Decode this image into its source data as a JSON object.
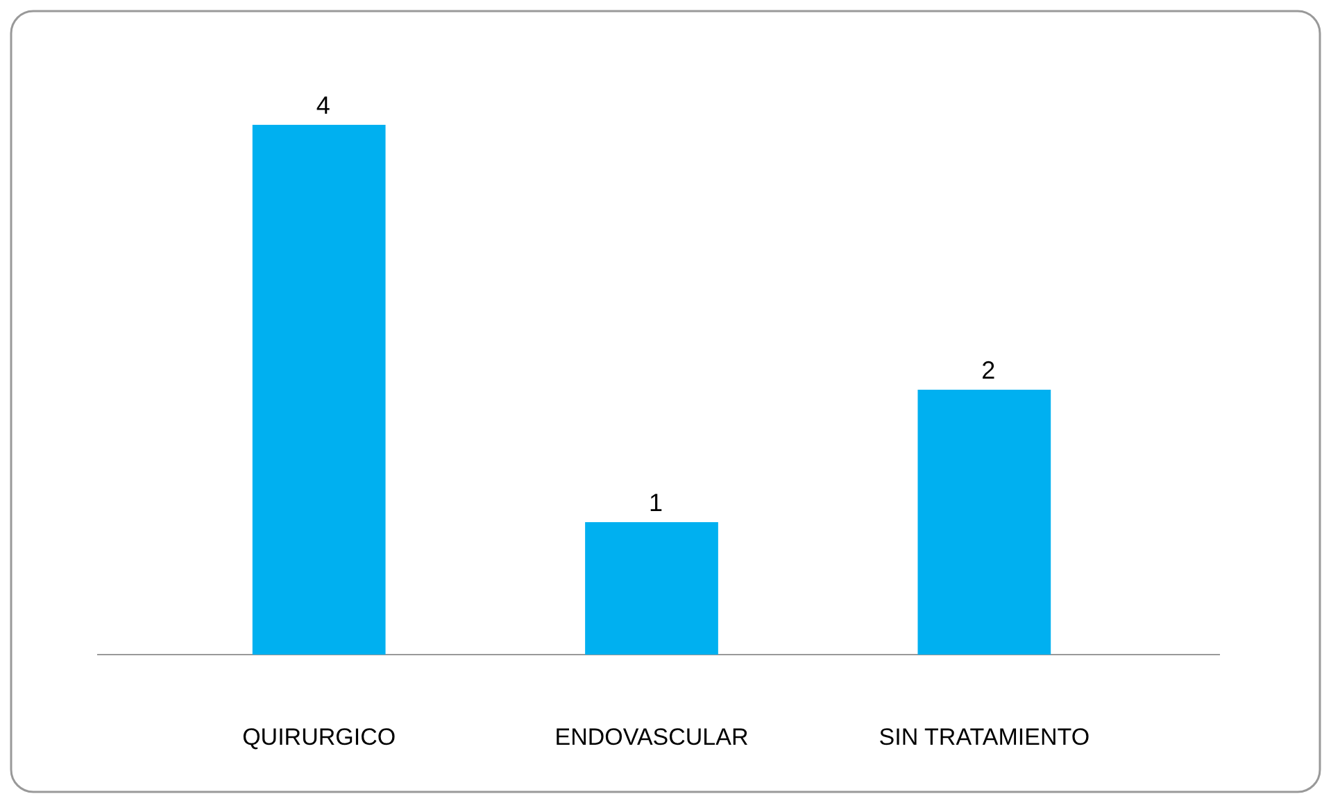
{
  "chart_data": {
    "type": "bar",
    "categories": [
      "QUIRURGICO",
      "ENDOVASCULAR",
      "SIN TRATAMIENTO"
    ],
    "values": [
      4,
      1,
      2
    ],
    "color": "#00b0f0",
    "data_labels": true
  }
}
